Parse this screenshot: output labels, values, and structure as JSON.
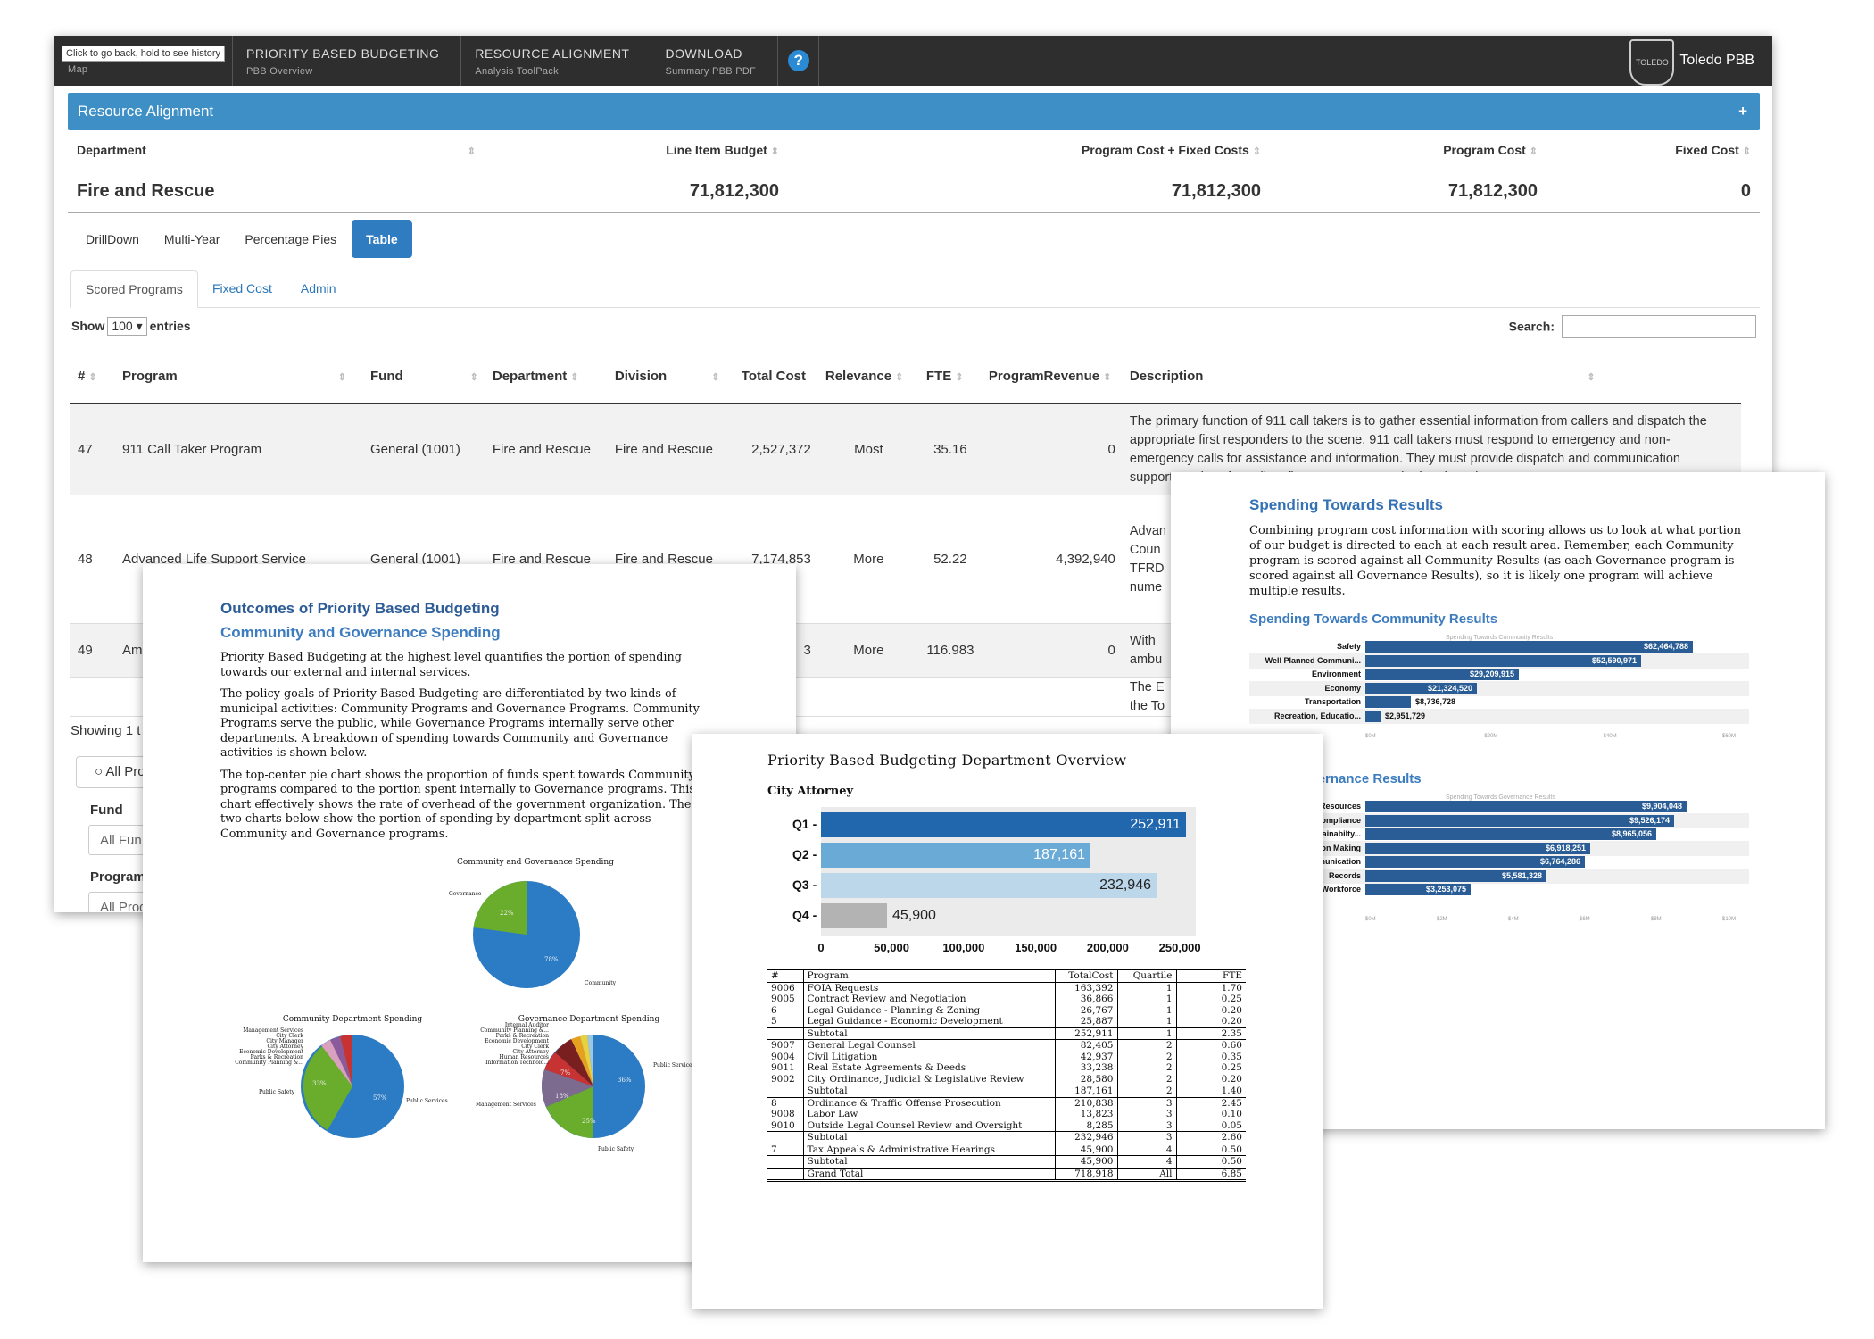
{
  "app": {
    "tooltip": "Click to go back, hold to see history",
    "nav": [
      {
        "title": "",
        "sub": "Map"
      },
      {
        "title": "PRIORITY BASED BUDGETING",
        "sub": "PBB Overview"
      },
      {
        "title": "RESOURCE ALIGNMENT",
        "sub": "Analysis ToolPack"
      },
      {
        "title": "DOWNLOAD",
        "sub": "Summary PBB PDF"
      }
    ],
    "help": "?",
    "brand": "Toledo PBB",
    "seal_text": "CITY OF TOLEDO",
    "panel_title": "Resource Alignment",
    "panel_toggle": "+",
    "summary_headers": [
      "Department",
      "Line Item Budget",
      "Program Cost + Fixed Costs",
      "Program Cost",
      "Fixed Cost"
    ],
    "summary_row": [
      "Fire and Rescue",
      "71,812,300",
      "71,812,300",
      "71,812,300",
      "0"
    ],
    "views": [
      "DrillDown",
      "Multi-Year",
      "Percentage Pies",
      "Table"
    ],
    "active_view": "Table",
    "tabs": [
      "Scored Programs",
      "Fixed Cost",
      "Admin"
    ],
    "show_label": "Show",
    "show_value": "100",
    "entries_label": "entries",
    "search_label": "Search:",
    "search_value": "",
    "table_headers": [
      "#",
      "Program",
      "Fund",
      "Department",
      "Division",
      "Total Cost",
      "Relevance",
      "FTE",
      "ProgramRevenue",
      "Description"
    ],
    "rows": [
      {
        "num": "47",
        "program": "911 Call Taker Program",
        "fund": "General (1001)",
        "department": "Fire and Rescue",
        "division": "Fire and Rescue",
        "total_cost": "2,527,372",
        "relevance": "Most",
        "fte": "35.16",
        "revenue": "0",
        "description": "The primary function of 911 call takers is to gather essential information from callers and dispatch the appropriate first responders to the scene. 911 call takers must respond to emergency and non-emergency calls for assistance and information. They must provide dispatch and communication support services for police, fire, emergency, and related services."
      },
      {
        "num": "48",
        "program": "Advanced Life Support Service",
        "fund": "General (1001)",
        "department": "Fire and Rescue",
        "division": "Fire and Rescue",
        "total_cost": "7,174,853",
        "relevance": "More",
        "fte": "52.22",
        "revenue": "4,392,940",
        "description": "Advan Coun TFRD nume missi expe"
      },
      {
        "num": "49",
        "program": "Amb",
        "fund": "",
        "department": "",
        "division": "",
        "total_cost": "3",
        "relevance": "More",
        "fte": "116.983",
        "revenue": "0",
        "description": "With ambu"
      },
      {
        "num": "",
        "program": "",
        "fund": "",
        "department": "",
        "division": "",
        "total_cost": "",
        "relevance": "",
        "fte": "",
        "revenue": "",
        "description": "The E the To"
      }
    ],
    "showing": "Showing 1 t",
    "radio_label": "All Pro",
    "fund_label": "Fund",
    "fund_value": "All Fun",
    "program_label": "Program",
    "program_value": "All Prog"
  },
  "outcomes": {
    "title": "Outcomes of Priority Based Budgeting",
    "subtitle": "Community and Governance Spending",
    "p1": "Priority Based Budgeting at the highest level quantifies the portion of spending towards our external and internal services.",
    "p2": "The policy goals of Priority Based Budgeting are differentiated by two kinds of municipal activities: Community Programs and Governance Programs. Community Programs serve the public, while Governance Programs internally serve other departments. A breakdown of spending towards Community and Governance activities is shown below.",
    "p3": "The top-center pie chart shows the proportion of funds spent towards Community programs compared to the portion spent internally to Governance programs. This chart effectively shows the rate of overhead of the government organization. The two charts below show the portion of spending by department split across Community and Governance programs.",
    "pie1_title": "Community and Governance Spending",
    "pie1_labels": [
      "Governance",
      "Community"
    ],
    "pie1_values": [
      "22%",
      "78%"
    ],
    "pie2_title": "Community Department Spending",
    "pie2_labels": [
      "Management Services",
      "City Clerk",
      "City Manager",
      "City Attorney",
      "Economic Development",
      "Parks & Recreation",
      "Community Planning &...",
      "Public Safety",
      "Public Services"
    ],
    "pie2_values": [
      "33%",
      "57%"
    ],
    "pie3_title": "Governance Department Spending",
    "pie3_labels": [
      "Internal Auditor",
      "Community Planning &...",
      "Parks & Recreation",
      "Economic Development",
      "City Clerk",
      "City Attorney",
      "Human Resources",
      "Information Technolo...",
      "Management Services",
      "Public Services",
      "Public Safety"
    ],
    "pie3_values": [
      "7%",
      "18%",
      "25%",
      "36%"
    ]
  },
  "spending": {
    "title": "Spending Towards Results",
    "body": "Combining program cost information with scoring allows us to look at what portion of our budget is directed to each at each result area. Remember, each Community program is scored against all Community Results (as each Governance program is scored against all Governance Results), so it is likely one program will achieve multiple results.",
    "community_title": "Spending Towards Community Results",
    "community_chart_title": "Spending Towards Community Results",
    "community": [
      {
        "label": "Safety",
        "value": "$62,464,788",
        "amount": 62464788
      },
      {
        "label": "Well Planned Communi...",
        "value": "$52,590,971",
        "amount": 52590971
      },
      {
        "label": "Environment",
        "value": "$29,209,915",
        "amount": 29209915
      },
      {
        "label": "Economy",
        "value": "$21,324,520",
        "amount": 21324520
      },
      {
        "label": "Transportation",
        "value": "$8,736,728",
        "amount": 8736728
      },
      {
        "label": "Recreation, Educatio...",
        "value": "$2,951,729",
        "amount": 2951729
      }
    ],
    "community_ticks": [
      "$0M",
      "$20M",
      "$40M",
      "$60M"
    ],
    "governance_title": "wards Governance Results",
    "governance_chart_title": "Spending Towards Governance Results",
    "governance": [
      {
        "label": "Resources",
        "value": "$9,904,048",
        "amount": 9904048
      },
      {
        "label": "Compliance",
        "value": "$9,526,174",
        "amount": 9526174
      },
      {
        "label": "stainabilty...",
        "value": "$8,965,056",
        "amount": 8965056
      },
      {
        "label": "sion Making",
        "value": "$6,918,251",
        "amount": 6918251
      },
      {
        "label": "munication",
        "value": "$6,764,286",
        "amount": 6764286
      },
      {
        "label": "Records",
        "value": "$5,581,328",
        "amount": 5581328
      },
      {
        "label": "Workforce",
        "value": "$3,253,075",
        "amount": 3253075
      }
    ],
    "governance_ticks": [
      "$0M",
      "$2M",
      "$4M",
      "$6M",
      "$8M",
      "$10M"
    ]
  },
  "dept": {
    "title": "Priority Based Budgeting Department Overview",
    "department": "City Attorney",
    "quartiles": [
      "Q1",
      "Q2",
      "Q3",
      "Q4"
    ],
    "quartile_values": [
      "252,911",
      "187,161",
      "232,946",
      "45,900"
    ],
    "ticks": [
      "0",
      "50,000",
      "100,000",
      "150,000",
      "200,000",
      "250,000"
    ],
    "table_headers": [
      "#",
      "Program",
      "TotalCost",
      "Quartile",
      "FTE"
    ],
    "table_rows": [
      [
        "9006",
        "FOIA Requests",
        "163,392",
        "1",
        "1.70",
        ""
      ],
      [
        "9005",
        "Contract Review and Negotiation",
        "36,866",
        "1",
        "0.25",
        ""
      ],
      [
        "6",
        "Legal Guidance - Planning & Zoning",
        "26,767",
        "1",
        "0.20",
        ""
      ],
      [
        "5",
        "Legal Guidance - Economic Development",
        "25,887",
        "1",
        "0.20",
        ""
      ],
      [
        "",
        "Subtotal",
        "252,911",
        "1",
        "2.35",
        "sub"
      ],
      [
        "9007",
        "General Legal Counsel",
        "82,405",
        "2",
        "0.60",
        "sub"
      ],
      [
        "9004",
        "Civil Litigation",
        "42,937",
        "2",
        "0.35",
        ""
      ],
      [
        "9011",
        "Real Estate Agreements & Deeds",
        "33,238",
        "2",
        "0.25",
        ""
      ],
      [
        "9002",
        "City Ordinance, Judicial & Legislative Review",
        "28,580",
        "2",
        "0.20",
        ""
      ],
      [
        "",
        "Subtotal",
        "187,161",
        "2",
        "1.40",
        "sub"
      ],
      [
        "8",
        "Ordinance & Traffic Offense Prosecution",
        "210,838",
        "3",
        "2.45",
        "sub"
      ],
      [
        "9008",
        "Labor Law",
        "13,823",
        "3",
        "0.10",
        ""
      ],
      [
        "9010",
        "Outside Legal Counsel Review and Oversight",
        "8,285",
        "3",
        "0.05",
        ""
      ],
      [
        "",
        "Subtotal",
        "232,946",
        "3",
        "2.60",
        "sub"
      ],
      [
        "7",
        "Tax Appeals & Administrative Hearings",
        "45,900",
        "4",
        "0.50",
        "sub"
      ],
      [
        "",
        "Subtotal",
        "45,900",
        "4",
        "0.50",
        "sub"
      ],
      [
        "",
        "Grand Total",
        "718,918",
        "All",
        "6.85",
        "sub"
      ]
    ]
  },
  "chart_data": [
    {
      "type": "bar",
      "title": "Spending Towards Community Results",
      "categories": [
        "Safety",
        "Well Planned Communi...",
        "Environment",
        "Economy",
        "Transportation",
        "Recreation, Educatio..."
      ],
      "values": [
        62464788,
        52590971,
        29209915,
        21324520,
        8736728,
        2951729
      ],
      "orientation": "horizontal"
    },
    {
      "type": "bar",
      "title": "Spending Towards Governance Results",
      "categories": [
        "Resources",
        "Compliance",
        "stainabilty...",
        "sion Making",
        "munication",
        "Records",
        "Workforce"
      ],
      "values": [
        9904048,
        9526174,
        8965056,
        6918251,
        6764286,
        5581328,
        3253075
      ],
      "orientation": "horizontal"
    },
    {
      "type": "bar",
      "categories": [
        "Q1",
        "Q2",
        "Q3",
        "Q4"
      ],
      "values": [
        252911,
        187161,
        232946,
        45900
      ],
      "xlim": [
        0,
        260000
      ],
      "orientation": "horizontal"
    },
    {
      "type": "pie",
      "title": "Community and Governance Spending",
      "categories": [
        "Community",
        "Governance"
      ],
      "values": [
        78,
        22
      ]
    }
  ]
}
